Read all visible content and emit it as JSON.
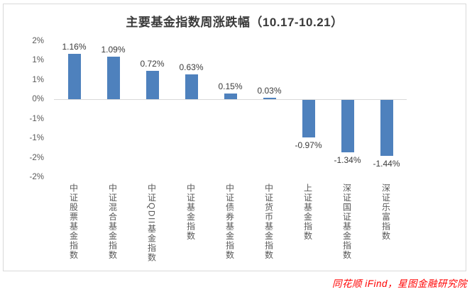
{
  "chart": {
    "title": "主要基金指数周涨跌幅（10.17-10.21）"
  },
  "chart_data": {
    "type": "bar",
    "title": "主要基金指数周涨跌幅（10.17-10.21）",
    "categories": [
      "中证股票基金指数",
      "中证混合基金指数",
      "中证QDII基金指数",
      "中证基金指数",
      "中证债券基金指数",
      "中证货币基金指数",
      "上证基金指数",
      "深证国证基金指数",
      "深证乐富指数"
    ],
    "values": [
      1.16,
      1.09,
      0.72,
      0.63,
      0.15,
      0.03,
      -0.97,
      -1.34,
      -1.44
    ],
    "data_labels": [
      "1.16%",
      "1.09%",
      "0.72%",
      "0.63%",
      "0.15%",
      "0.03%",
      "-0.97%",
      "-1.34%",
      "-1.44%"
    ],
    "unit": "percent",
    "xlabel": "",
    "ylabel": "",
    "ylim": [
      -2.0,
      1.5
    ],
    "y_tick_step": 0.5,
    "y_ticks": [
      {
        "value": 1.5,
        "label": "2%"
      },
      {
        "value": 1.0,
        "label": "1%"
      },
      {
        "value": 0.5,
        "label": "1%"
      },
      {
        "value": 0.0,
        "label": "0%"
      },
      {
        "value": -0.5,
        "label": "-1%"
      },
      {
        "value": -1.0,
        "label": "-1%"
      },
      {
        "value": -1.5,
        "label": "-2%"
      },
      {
        "value": -2.0,
        "label": "-2%"
      }
    ],
    "grid": "zero-baseline-only",
    "legend": "none",
    "bar_color": "#4e81bd"
  },
  "footer": {
    "credit": "同花顺 iFind，星图金融研究院"
  },
  "colors": {
    "bar": "#4e81bd",
    "frame_border": "#d9d9d9",
    "baseline": "#d9d9d9",
    "axis_text": "#595959",
    "category_text": "#595959",
    "data_label_text": "#3b3b3b",
    "title_text": "#3a3a3a",
    "footer_text": "#ff0000",
    "background": "#ffffff"
  }
}
